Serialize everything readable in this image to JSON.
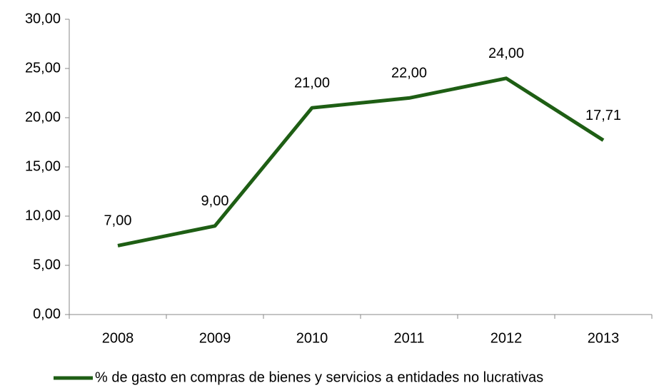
{
  "chart_data": {
    "type": "line",
    "categories": [
      "2008",
      "2009",
      "2010",
      "2011",
      "2012",
      "2013"
    ],
    "series": [
      {
        "name": "% de gasto en compras de bienes y servicios a entidades no lucrativas",
        "color": "#1e5e14",
        "values": [
          7,
          9,
          21,
          22,
          24,
          17.71
        ],
        "value_labels": [
          "7,00",
          "9,00",
          "21,00",
          "22,00",
          "24,00",
          "17,71"
        ]
      }
    ],
    "ylim": [
      0,
      30
    ],
    "yticks": [
      {
        "value": 0,
        "label": "0,00"
      },
      {
        "value": 5,
        "label": "5,00"
      },
      {
        "value": 10,
        "label": "10,00"
      },
      {
        "value": 15,
        "label": "15,00"
      },
      {
        "value": 20,
        "label": "20,00"
      },
      {
        "value": 25,
        "label": "25,00"
      },
      {
        "value": 30,
        "label": "30,00"
      }
    ],
    "legend": "bottom"
  }
}
